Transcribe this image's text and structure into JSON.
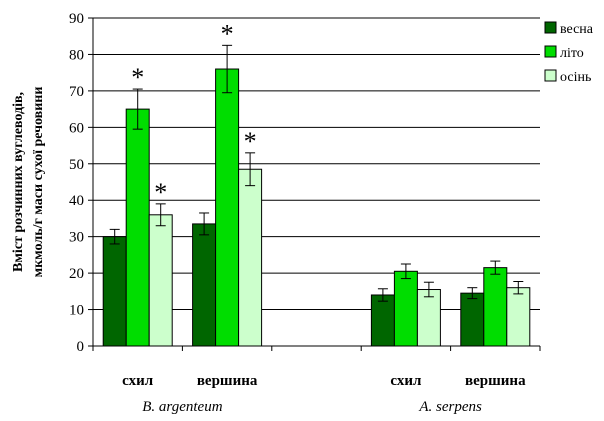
{
  "chart_data": {
    "type": "bar",
    "ylabel_line1": "Вміст розчинних вуглеводів,",
    "ylabel_line2": "мкмоль/г маси сухої речовини",
    "xlabel": "",
    "ylim": [
      0,
      90
    ],
    "yticks": [
      0,
      10,
      20,
      30,
      40,
      50,
      60,
      70,
      80,
      90
    ],
    "grid": true,
    "legend_position": "top-right",
    "groups": [
      {
        "name": "B. argenteum",
        "categories": [
          "схил",
          "вершина"
        ]
      },
      {
        "name": "A. serpens",
        "categories": [
          "схил",
          "вершина"
        ]
      }
    ],
    "categories": [
      "схил",
      "вершина",
      "",
      "схил",
      "вершина"
    ],
    "series": [
      {
        "name": "весна",
        "color": "#006600",
        "values": [
          30,
          33.5,
          null,
          14,
          14.5
        ],
        "errors": [
          2,
          3,
          null,
          1.7,
          1.5
        ],
        "significant": [
          false,
          false,
          false,
          false,
          false
        ]
      },
      {
        "name": "літо",
        "color": "#00dd00",
        "values": [
          65,
          76,
          null,
          20.5,
          21.5
        ],
        "errors": [
          5.5,
          6.5,
          null,
          2,
          1.8
        ],
        "significant": [
          true,
          true,
          false,
          false,
          false
        ]
      },
      {
        "name": "осінь",
        "color": "#ccffcc",
        "values": [
          36,
          48.5,
          null,
          15.5,
          16
        ],
        "errors": [
          3,
          4.5,
          null,
          2,
          1.7
        ],
        "significant": [
          true,
          true,
          false,
          false,
          false
        ]
      }
    ],
    "significance_marker": "*"
  }
}
